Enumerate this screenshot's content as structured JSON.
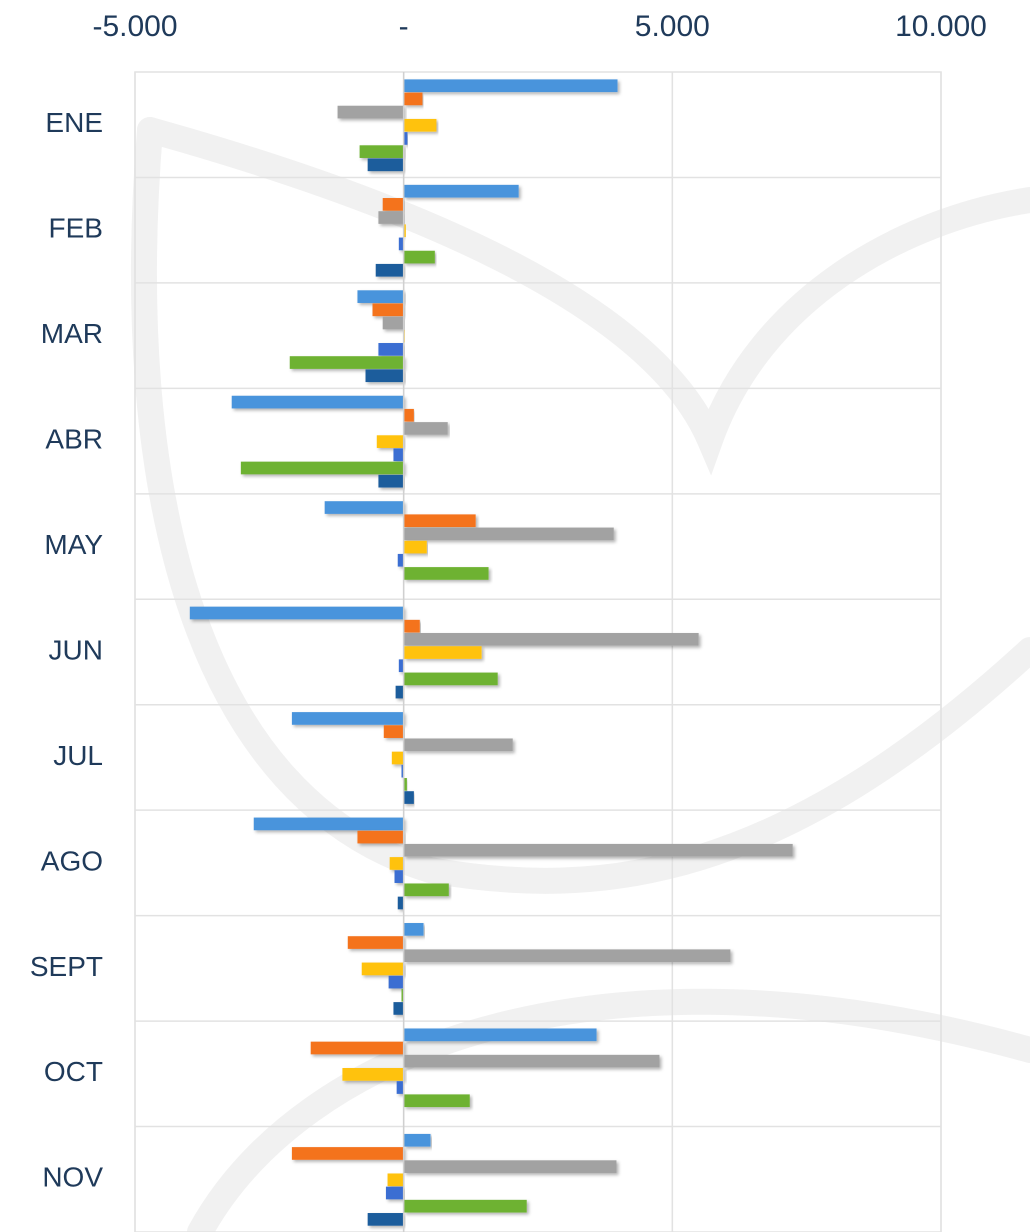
{
  "chart_data": {
    "type": "hbar",
    "categories": [
      "ENE",
      "FEB",
      "MAR",
      "ABR",
      "MAY",
      "JUN",
      "JUL",
      "AGO",
      "SEPT",
      "OCT",
      "NOV"
    ],
    "series": [
      {
        "color": "#4a94dc",
        "values": [
          3980,
          2140,
          -860,
          -3200,
          -1470,
          -3980,
          -2080,
          -2790,
          370,
          3590,
          500
        ]
      },
      {
        "color": "#f4731f",
        "values": [
          350,
          -390,
          -580,
          190,
          1340,
          300,
          -370,
          -860,
          -1040,
          -1730,
          -2080
        ]
      },
      {
        "color": "#a2a2a2",
        "values": [
          -1230,
          -470,
          -390,
          820,
          3910,
          5490,
          2030,
          7240,
          6080,
          4760,
          3960
        ]
      },
      {
        "color": "#ffc20e",
        "values": [
          610,
          40,
          20,
          -500,
          430,
          1450,
          -220,
          -260,
          -780,
          -1140,
          -300
        ]
      },
      {
        "color": "#3a6ed2",
        "values": [
          70,
          -90,
          -470,
          -190,
          -110,
          -90,
          -40,
          -170,
          -280,
          -130,
          -330
        ]
      },
      {
        "color": "#6eb232",
        "values": [
          -820,
          580,
          -2120,
          -3030,
          1580,
          1750,
          60,
          840,
          -40,
          1230,
          2290
        ]
      },
      {
        "color": "#1f5d9c",
        "values": [
          -670,
          -520,
          -710,
          -470,
          0,
          -150,
          190,
          -110,
          -190,
          0,
          -670
        ]
      }
    ],
    "xlim": [
      -5000,
      10000
    ],
    "xticks": [
      {
        "value": -5000,
        "label": "-5.000"
      },
      {
        "value": 0,
        "label": "-"
      },
      {
        "value": 5000,
        "label": "5.000"
      },
      {
        "value": 10000,
        "label": "10.000"
      }
    ],
    "grid": true
  }
}
